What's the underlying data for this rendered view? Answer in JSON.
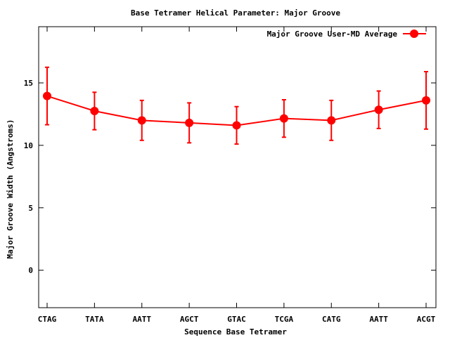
{
  "chart_data": {
    "type": "line",
    "title": "Base Tetramer Helical Parameter: Major Groove",
    "xlabel": "Sequence Base Tetramer",
    "ylabel": "Major Groove Width (Angstroms)",
    "categories": [
      "CTAG",
      "TATA",
      "AATT",
      "AGCT",
      "GTAC",
      "TCGA",
      "CATG",
      "AATT",
      "ACGT"
    ],
    "ylim": [
      -3,
      19.5
    ],
    "yticks": [
      0,
      5,
      10,
      15
    ],
    "series": [
      {
        "name": "Major Groove User-MD Average",
        "values": [
          13.95,
          12.75,
          12.0,
          11.8,
          11.6,
          12.15,
          12.0,
          12.85,
          13.6
        ],
        "errors": [
          2.3,
          1.5,
          1.6,
          1.6,
          1.5,
          1.5,
          1.6,
          1.5,
          2.3
        ],
        "color": "#ff0000"
      }
    ],
    "grid": false,
    "legend_position": "top-right"
  }
}
